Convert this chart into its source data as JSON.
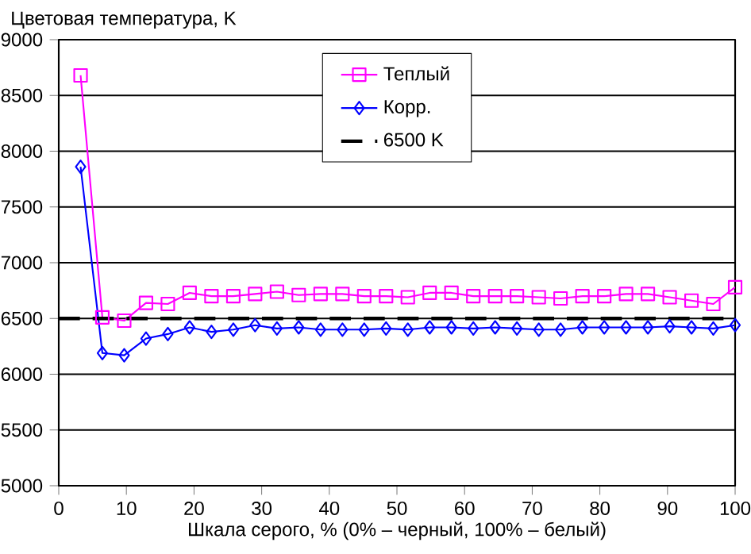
{
  "chart_data": {
    "type": "line",
    "ylabel": "Цветовая температура, K",
    "xlabel": "Шкала серого, % (0% – черный, 100% – белый)",
    "x": [
      3.23,
      6.45,
      9.68,
      12.9,
      16.13,
      19.35,
      22.58,
      25.81,
      29.03,
      32.26,
      35.48,
      38.71,
      41.94,
      45.16,
      48.39,
      51.61,
      54.84,
      58.06,
      61.29,
      64.52,
      67.74,
      70.97,
      74.19,
      77.42,
      80.65,
      83.87,
      87.1,
      90.32,
      93.55,
      96.77,
      100
    ],
    "series": [
      {
        "name": "Теплый",
        "color": "#ff00ff",
        "marker": "square",
        "values": [
          8680,
          6510,
          6480,
          6640,
          6630,
          6730,
          6700,
          6700,
          6720,
          6740,
          6710,
          6720,
          6720,
          6700,
          6700,
          6690,
          6730,
          6730,
          6700,
          6700,
          6700,
          6690,
          6680,
          6700,
          6700,
          6720,
          6720,
          6690,
          6660,
          6630,
          6780
        ]
      },
      {
        "name": "Корр.",
        "color": "#0000ff",
        "marker": "diamond",
        "values": [
          7860,
          6190,
          6170,
          6320,
          6360,
          6420,
          6380,
          6400,
          6440,
          6410,
          6420,
          6400,
          6400,
          6400,
          6410,
          6400,
          6420,
          6420,
          6410,
          6420,
          6410,
          6400,
          6400,
          6420,
          6420,
          6420,
          6420,
          6430,
          6420,
          6410,
          6440
        ]
      }
    ],
    "ref_lines": [
      {
        "axis": "y",
        "value": 6500,
        "label": "6500 K",
        "color": "#000000",
        "line_style": "dashed"
      }
    ],
    "xlim": [
      0,
      100
    ],
    "xticks": [
      0,
      10,
      20,
      30,
      40,
      50,
      60,
      70,
      80,
      90,
      100
    ],
    "ylim": [
      5000,
      9000
    ],
    "yticks": [
      5000,
      5500,
      6000,
      6500,
      7000,
      7500,
      8000,
      8500,
      9000
    ],
    "grid": "y",
    "legend": "top",
    "line_style": "solid"
  }
}
